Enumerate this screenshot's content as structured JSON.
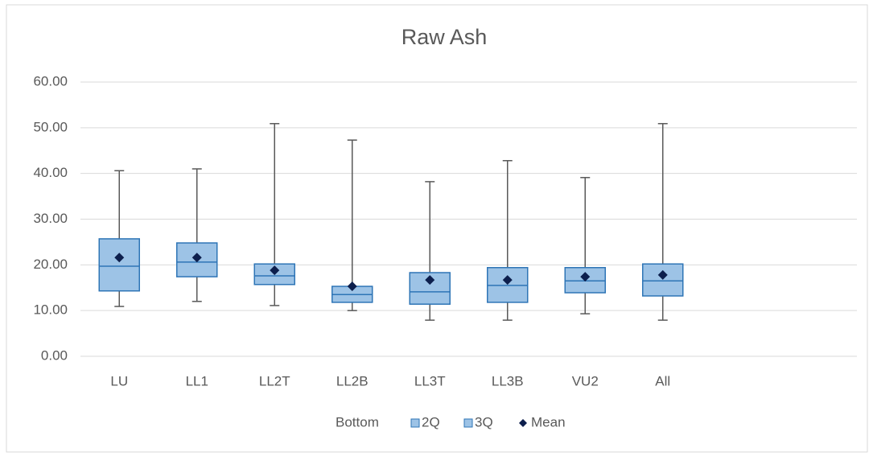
{
  "chart_data": {
    "type": "box",
    "title": "Raw Ash",
    "categories": [
      "LU",
      "LL1",
      "LL2T",
      "LL2B",
      "LL3T",
      "LL3B",
      "VU2",
      "All"
    ],
    "min": [
      10.9,
      12.0,
      11.1,
      10.0,
      7.9,
      7.9,
      9.3,
      7.9
    ],
    "q1": [
      14.3,
      17.4,
      15.7,
      11.8,
      11.4,
      11.8,
      13.9,
      13.2
    ],
    "median": [
      19.7,
      20.6,
      17.6,
      13.5,
      14.1,
      15.5,
      16.5,
      16.5
    ],
    "q3": [
      25.7,
      24.8,
      20.2,
      15.3,
      18.3,
      19.4,
      19.4,
      20.2
    ],
    "max": [
      40.6,
      41.0,
      50.9,
      47.3,
      38.2,
      42.8,
      39.1,
      50.9
    ],
    "mean": [
      21.6,
      21.6,
      18.8,
      15.3,
      16.7,
      16.7,
      17.4,
      17.8
    ],
    "legend": [
      "Bottom",
      "2Q",
      "3Q",
      "Mean"
    ],
    "box_color": "#9dc3e6",
    "box_edge": "#2e75b6",
    "whisker_color": "#595959",
    "mean_color": "#0d1f4d",
    "ylim": [
      0,
      60
    ],
    "yticks": [
      {
        "value": 0,
        "label": "0.00"
      },
      {
        "value": 10,
        "label": "10.00"
      },
      {
        "value": 20,
        "label": "20.00"
      },
      {
        "value": 30,
        "label": "30.00"
      },
      {
        "value": 40,
        "label": "40.00"
      },
      {
        "value": 50,
        "label": "50.00"
      },
      {
        "value": 60,
        "label": "60.00"
      }
    ],
    "grid": true
  }
}
